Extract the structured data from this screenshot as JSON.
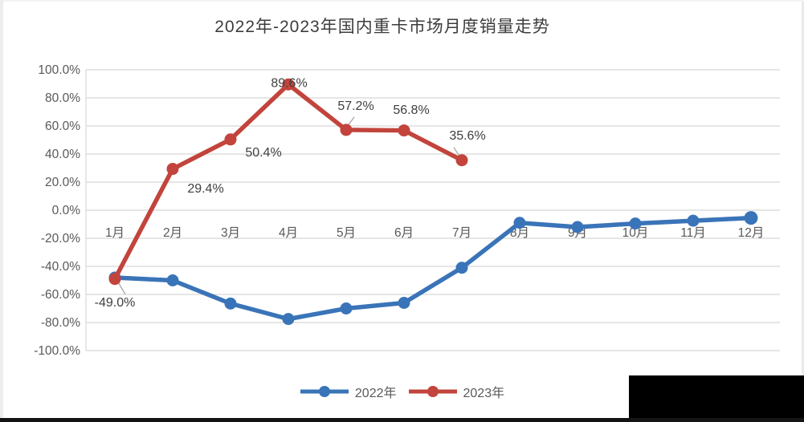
{
  "title": "2022年-2023年国内重卡市场月度销量走势",
  "chart_data": {
    "type": "line",
    "title": "2022年-2023年国内重卡市场月度销量走势",
    "categories": [
      "1月",
      "2月",
      "3月",
      "4月",
      "5月",
      "6月",
      "7月",
      "8月",
      "9月",
      "10月",
      "11月",
      "12月"
    ],
    "xlabel": "",
    "ylabel": "",
    "ylim": [
      -100,
      100
    ],
    "y_tick_step": 20,
    "y_tick_labels": [
      "100.0%",
      "80.0%",
      "60.0%",
      "40.0%",
      "20.0%",
      "0.0%",
      "-20.0%",
      "-40.0%",
      "-60.0%",
      "-80.0%",
      "-100.0%"
    ],
    "grid": true,
    "legend_position": "bottom",
    "series": [
      {
        "name": "2022年",
        "color": "#3a74b8",
        "values": [
          -48,
          -50,
          -66.5,
          -77.5,
          -70,
          -66,
          -41,
          -9,
          -12,
          -9.5,
          -7.5,
          -5.5
        ],
        "data_labels": []
      },
      {
        "name": "2023年",
        "color": "#c2443c",
        "values": [
          -49.0,
          29.4,
          50.4,
          89.6,
          57.2,
          56.8,
          35.6
        ],
        "data_labels": [
          "-49.0%",
          "29.4%",
          "50.4%",
          "89.6%",
          "57.2%",
          "56.8%",
          "35.6%"
        ]
      }
    ]
  },
  "colors": {
    "grid": "#d6d6d6",
    "axis": "#d0d0d0",
    "tick_text": "#595959",
    "data_label_text": "#3f3f3f",
    "leader": "#a6a6a6",
    "redaction": "#000000"
  }
}
